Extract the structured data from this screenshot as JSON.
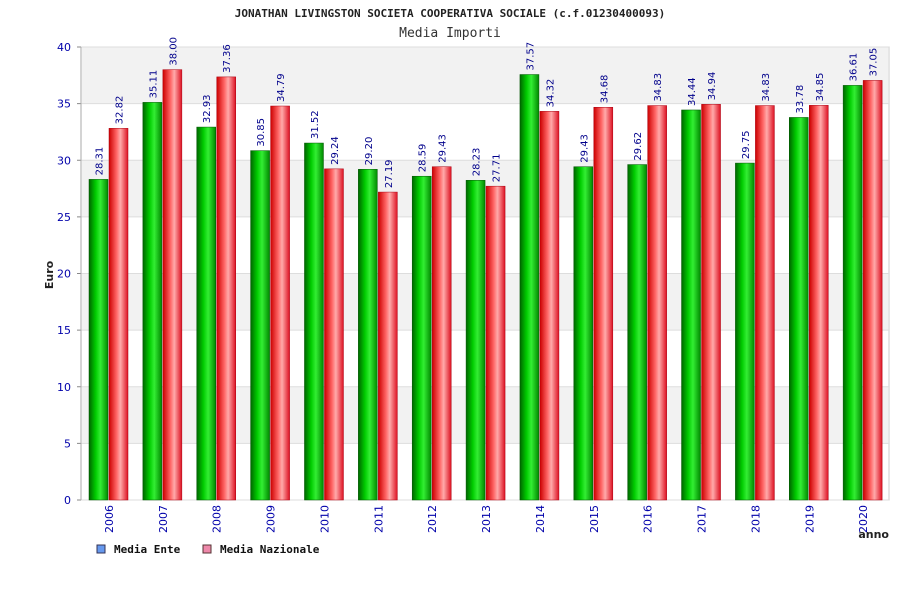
{
  "chart_data": {
    "type": "bar",
    "title": "JONATHAN LIVINGSTON SOCIETA COOPERATIVA SOCIALE (c.f.01230400093)",
    "subtitle": "Media Importi",
    "xlabel": "anno",
    "ylabel": "Euro",
    "ylim": [
      0,
      40
    ],
    "yticks": [
      0,
      5,
      10,
      15,
      20,
      25,
      30,
      35,
      40
    ],
    "grid": true,
    "legend_position": "bottom-left",
    "categories": [
      "2006",
      "2007",
      "2008",
      "2009",
      "2010",
      "2011",
      "2012",
      "2013",
      "2014",
      "2015",
      "2016",
      "2017",
      "2018",
      "2019",
      "2020"
    ],
    "series": [
      {
        "name": "Media Ente",
        "color": "#00aa00",
        "legend_color": "#6699ee",
        "values": [
          28.31,
          35.11,
          32.93,
          30.85,
          31.52,
          29.2,
          28.59,
          28.23,
          37.57,
          29.43,
          29.62,
          34.44,
          29.75,
          33.78,
          36.61
        ],
        "labels": [
          "28.31",
          "35.11",
          "32.93",
          "30.85",
          "31.52",
          "29.20",
          "28.59",
          "28.23",
          "37.57",
          "29.43",
          "29.62",
          "34.44",
          "29.75",
          "33.78",
          "36.61"
        ]
      },
      {
        "name": "Media Nazionale",
        "color": "#ee2233",
        "legend_color": "#ee88aa",
        "values": [
          32.82,
          38.0,
          37.36,
          34.79,
          29.24,
          27.19,
          29.43,
          27.71,
          34.32,
          34.68,
          34.83,
          34.94,
          34.83,
          34.85,
          37.05
        ],
        "labels": [
          "32.82",
          "38.00",
          "37.36",
          "34.79",
          "29.24",
          "27.19",
          "29.43",
          "27.71",
          "34.32",
          "34.68",
          "34.83",
          "34.94",
          "34.83",
          "34.85",
          "37.05"
        ]
      }
    ]
  }
}
